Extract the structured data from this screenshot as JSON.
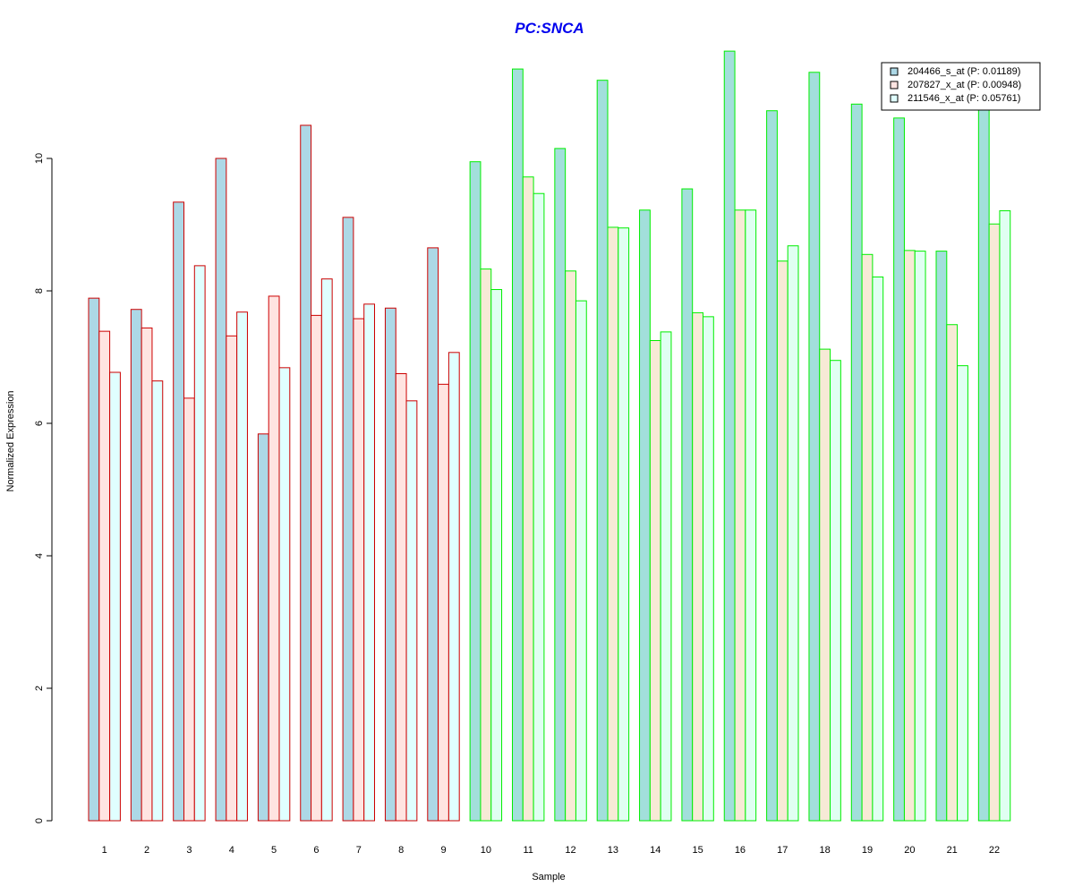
{
  "chart_data": {
    "type": "bar",
    "title": "PC:SNCA",
    "xlabel": "Sample",
    "ylabel": "Normalized Expression",
    "ylim": [
      0,
      12
    ],
    "yticks": [
      0,
      2,
      4,
      6,
      8,
      10
    ],
    "grid": false,
    "legend_position": "top-right",
    "categories": [
      "1",
      "2",
      "3",
      "4",
      "5",
      "6",
      "7",
      "8",
      "9",
      "10",
      "11",
      "12",
      "13",
      "14",
      "15",
      "16",
      "17",
      "18",
      "19",
      "20",
      "21",
      "22"
    ],
    "series": [
      {
        "name": "204466_s_at (P: 0.01189)",
        "fill": "#add8e6",
        "values": [
          7.89,
          7.72,
          9.34,
          10.0,
          5.84,
          10.5,
          9.11,
          7.74,
          8.65,
          9.95,
          11.35,
          10.15,
          11.18,
          9.22,
          9.54,
          11.62,
          10.72,
          11.3,
          10.82,
          10.61,
          8.6,
          10.8
        ]
      },
      {
        "name": "207827_x_at (P: 0.00948)",
        "fill": "#ffe4e1",
        "values": [
          7.39,
          7.44,
          6.38,
          7.32,
          7.92,
          7.63,
          7.58,
          6.75,
          6.59,
          8.33,
          9.72,
          8.3,
          8.96,
          7.25,
          7.67,
          9.22,
          8.45,
          7.12,
          8.55,
          8.61,
          7.49,
          9.01
        ]
      },
      {
        "name": "211546_x_at (P: 0.05761)",
        "fill": "#e0ffff",
        "values": [
          6.77,
          6.64,
          8.38,
          7.68,
          6.84,
          8.18,
          7.8,
          6.34,
          7.07,
          8.02,
          9.47,
          7.85,
          8.95,
          7.38,
          7.61,
          9.22,
          8.68,
          6.95,
          8.21,
          8.6,
          6.87,
          9.21
        ]
      }
    ],
    "group_colors": {
      "group_a": {
        "samples": [
          "1",
          "2",
          "3",
          "4",
          "5",
          "6",
          "7",
          "8",
          "9"
        ],
        "border": "#cc0000",
        "fills": [
          "#add8e6",
          "#ffe4e1",
          "#e0ffff"
        ]
      },
      "group_b": {
        "samples": [
          "10",
          "11",
          "12",
          "13",
          "14",
          "15",
          "16",
          "17",
          "18",
          "19",
          "20",
          "21",
          "22"
        ],
        "border": "#00ee00",
        "fills": [
          "#a2dfdb",
          "#f7ead6",
          "#e0fff2"
        ]
      }
    },
    "title_color": "#0000ee"
  }
}
